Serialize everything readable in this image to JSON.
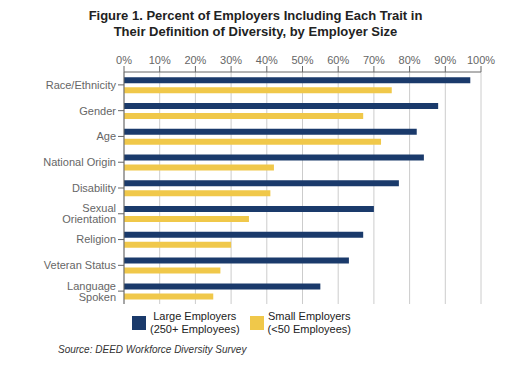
{
  "chart_data": {
    "type": "bar",
    "orientation": "horizontal",
    "title": "Figure 1. Percent of Employers Including Each Trait in\nTheir Definition of Diversity, by Employer Size",
    "categories": [
      "Race/Ethnicity",
      "Gender",
      "Age",
      "National Origin",
      "Disability",
      "Sexual Orientation",
      "Religion",
      "Veteran Status",
      "Language Spoken"
    ],
    "series": [
      {
        "name": "Large Employers\n(250+ Employees)",
        "color": "#1a3a6b",
        "values": [
          97,
          88,
          82,
          84,
          77,
          70,
          67,
          63,
          55
        ]
      },
      {
        "name": "Small Employers\n(<50 Employees)",
        "color": "#f0c84a",
        "values": [
          75,
          67,
          72,
          42,
          41,
          35,
          30,
          27,
          25
        ]
      }
    ],
    "xlim": [
      0,
      100
    ],
    "xticks": [
      {
        "value": 0,
        "label": "0%"
      },
      {
        "value": 10,
        "label": "10%"
      },
      {
        "value": 20,
        "label": "20%"
      },
      {
        "value": 30,
        "label": "30%"
      },
      {
        "value": 40,
        "label": "40%"
      },
      {
        "value": 50,
        "label": "50%"
      },
      {
        "value": 60,
        "label": "60%"
      },
      {
        "value": 70,
        "label": "70%"
      },
      {
        "value": 80,
        "label": "80%"
      },
      {
        "value": 90,
        "label": "90%"
      },
      {
        "value": 100,
        "label": "100%"
      }
    ],
    "grid": true,
    "legend": "bottom",
    "annotations": [
      "Source: DEED Workforce Diversity Survey"
    ]
  }
}
